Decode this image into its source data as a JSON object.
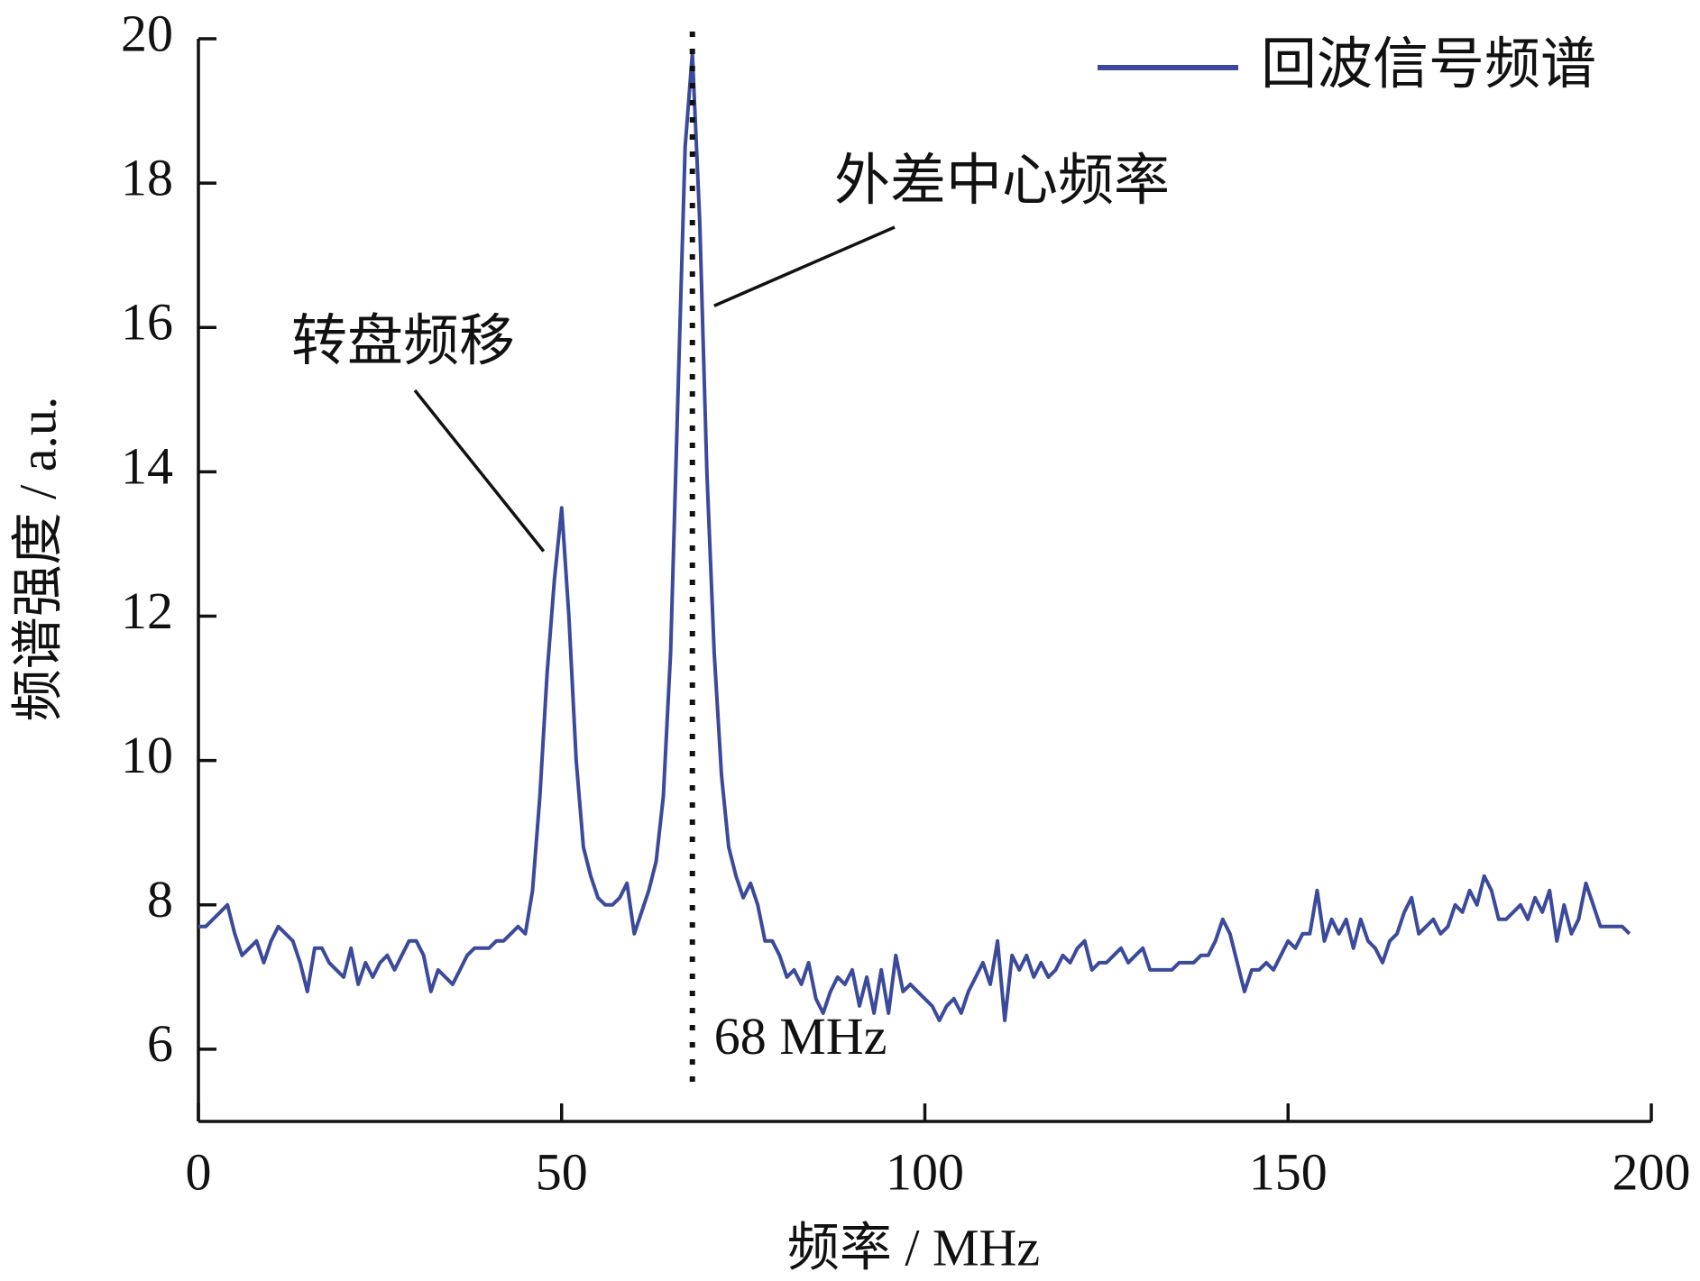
{
  "chart_data": {
    "type": "line",
    "x_label": "频率 / MHz",
    "y_label": "频谱强度 / a.u.",
    "x": [
      0,
      1,
      2,
      3,
      4,
      5,
      6,
      7,
      8,
      9,
      10,
      11,
      12,
      13,
      14,
      15,
      16,
      17,
      18,
      19,
      20,
      21,
      22,
      23,
      24,
      25,
      26,
      27,
      28,
      29,
      30,
      31,
      32,
      33,
      34,
      35,
      36,
      37,
      38,
      39,
      40,
      41,
      42,
      43,
      44,
      45,
      46,
      47,
      48,
      49,
      50,
      51,
      52,
      53,
      54,
      55,
      56,
      57,
      58,
      59,
      60,
      61,
      62,
      63,
      64,
      65,
      66,
      67,
      68,
      69,
      70,
      71,
      72,
      73,
      74,
      75,
      76,
      77,
      78,
      79,
      80,
      81,
      82,
      83,
      84,
      85,
      86,
      87,
      88,
      89,
      90,
      91,
      92,
      93,
      94,
      95,
      96,
      97,
      98,
      99,
      100,
      101,
      102,
      103,
      104,
      105,
      106,
      107,
      108,
      109,
      110,
      111,
      112,
      113,
      114,
      115,
      116,
      117,
      118,
      119,
      120,
      121,
      122,
      123,
      124,
      125,
      126,
      127,
      128,
      129,
      130,
      131,
      132,
      133,
      134,
      135,
      136,
      137,
      138,
      139,
      140,
      141,
      142,
      143,
      144,
      145,
      146,
      147,
      148,
      149,
      150,
      151,
      152,
      153,
      154,
      155,
      156,
      157,
      158,
      159,
      160,
      161,
      162,
      163,
      164,
      165,
      166,
      167,
      168,
      169,
      170,
      171,
      172,
      173,
      174,
      175,
      176,
      177,
      178,
      179,
      180,
      181,
      182,
      183,
      184,
      185,
      186,
      187,
      188,
      189,
      190,
      191,
      192,
      193,
      194,
      195,
      196,
      197
    ],
    "series": [
      {
        "name": "回波信号频谱",
        "color": "#3b4a9a",
        "values": [
          7.7,
          7.7,
          7.8,
          7.9,
          8.0,
          7.6,
          7.3,
          7.4,
          7.5,
          7.2,
          7.5,
          7.7,
          7.6,
          7.5,
          7.2,
          6.8,
          7.4,
          7.4,
          7.2,
          7.1,
          7.0,
          7.4,
          6.9,
          7.2,
          7.0,
          7.2,
          7.3,
          7.1,
          7.3,
          7.5,
          7.5,
          7.3,
          6.8,
          7.1,
          7.0,
          6.9,
          7.1,
          7.3,
          7.4,
          7.4,
          7.4,
          7.5,
          7.5,
          7.6,
          7.7,
          7.6,
          8.2,
          9.5,
          11.2,
          12.5,
          13.5,
          12.0,
          10.0,
          8.8,
          8.4,
          8.1,
          8.0,
          8.0,
          8.1,
          8.3,
          7.6,
          7.9,
          8.2,
          8.6,
          9.5,
          11.5,
          15.0,
          18.5,
          19.8,
          17.5,
          14.0,
          11.5,
          9.8,
          8.8,
          8.4,
          8.1,
          8.3,
          8.0,
          7.5,
          7.5,
          7.3,
          7.0,
          7.1,
          6.9,
          7.2,
          6.7,
          6.5,
          6.8,
          7.0,
          6.9,
          7.1,
          6.6,
          7.0,
          6.5,
          7.1,
          6.5,
          7.3,
          6.8,
          6.9,
          6.8,
          6.7,
          6.6,
          6.4,
          6.6,
          6.7,
          6.5,
          6.8,
          7.0,
          7.2,
          6.9,
          7.5,
          6.4,
          7.3,
          7.1,
          7.3,
          7.0,
          7.2,
          7.0,
          7.1,
          7.3,
          7.2,
          7.4,
          7.5,
          7.1,
          7.2,
          7.2,
          7.3,
          7.4,
          7.2,
          7.3,
          7.4,
          7.1,
          7.1,
          7.1,
          7.1,
          7.2,
          7.2,
          7.2,
          7.3,
          7.3,
          7.5,
          7.8,
          7.6,
          7.2,
          6.8,
          7.1,
          7.1,
          7.2,
          7.1,
          7.3,
          7.5,
          7.4,
          7.6,
          7.6,
          8.2,
          7.5,
          7.8,
          7.6,
          7.8,
          7.4,
          7.8,
          7.5,
          7.4,
          7.2,
          7.5,
          7.6,
          7.9,
          8.1,
          7.6,
          7.7,
          7.8,
          7.6,
          7.7,
          8.0,
          7.9,
          8.2,
          8.0,
          8.4,
          8.2,
          7.8,
          7.8,
          7.9,
          8.0,
          7.8,
          8.1,
          7.9,
          8.2,
          7.5,
          8.0,
          7.6,
          7.8,
          8.3,
          8.0,
          7.7,
          7.7,
          7.7,
          7.7,
          7.6
        ]
      }
    ],
    "xlim": [
      0,
      200
    ],
    "xticks": [
      0,
      50,
      100,
      150,
      200
    ],
    "ylim": [
      5,
      20
    ],
    "yticks": [
      6,
      8,
      10,
      12,
      14,
      16,
      18,
      20
    ],
    "legend": "upper right",
    "annotations": [
      {
        "text": "转盘频移",
        "x": 50,
        "y": 12.9
      },
      {
        "text": "外差中心频率",
        "x": 69.5,
        "y": 16.3
      },
      {
        "text": "68 MHz",
        "x": 68,
        "y": 6
      }
    ]
  }
}
